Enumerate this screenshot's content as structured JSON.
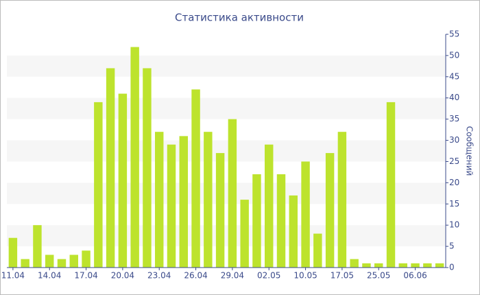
{
  "chart_data": {
    "type": "bar",
    "title": "Статистика активности",
    "y_axis_label": "Сообщений",
    "categories": [
      "11.04",
      null,
      null,
      "14.04",
      null,
      null,
      "17.04",
      null,
      null,
      "20.04",
      null,
      null,
      "23.04",
      null,
      null,
      "26.04",
      null,
      null,
      "29.04",
      null,
      null,
      "02.05",
      null,
      null,
      "10.05",
      null,
      null,
      "17.05",
      null,
      null,
      "25.05",
      null,
      null,
      "06.06",
      null,
      null
    ],
    "values": [
      7,
      2,
      10,
      3,
      2,
      3,
      4,
      39,
      47,
      41,
      52,
      47,
      32,
      29,
      31,
      42,
      32,
      27,
      35,
      16,
      22,
      29,
      22,
      17,
      25,
      8,
      27,
      32,
      2,
      1,
      1,
      39,
      1,
      1,
      1,
      1
    ],
    "color": "#bde32d",
    "ylim": [
      0,
      55
    ],
    "yticks": [
      0,
      5,
      10,
      15,
      20,
      25,
      30,
      35,
      40,
      45,
      50,
      55
    ],
    "grid": "bands"
  }
}
